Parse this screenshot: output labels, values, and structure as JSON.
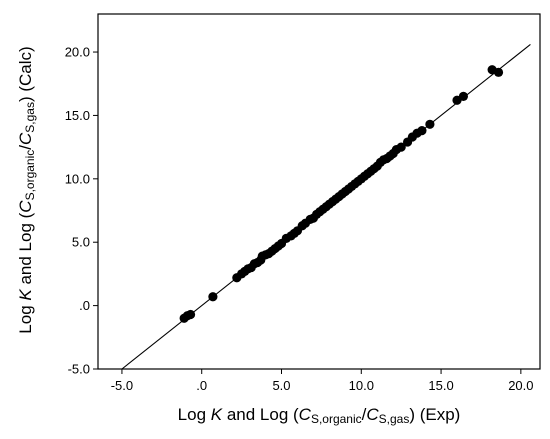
{
  "chart_data": {
    "type": "scatter",
    "title": "",
    "xlabel_parts": [
      "Log ",
      "K",
      " and Log (",
      "C",
      "S,organic",
      "/",
      "C",
      "S,gas",
      ")  (Exp)"
    ],
    "ylabel_parts": [
      "Log ",
      "K",
      " and Log (",
      "C",
      "S,organic",
      "/",
      "C",
      "S,gas",
      ")  (Calc)"
    ],
    "xlim": [
      -6.5,
      21.2
    ],
    "ylim": [
      -5.0,
      23.0
    ],
    "x_ticks": [
      -5,
      0,
      5,
      10,
      15,
      20
    ],
    "x_tick_labels": [
      "-5.0",
      ".0",
      "5.0",
      "10.0",
      "15.0",
      "20.0"
    ],
    "y_ticks": [
      -5,
      0,
      5,
      10,
      15,
      20
    ],
    "y_tick_labels": [
      "-5.0",
      ".0",
      "5.0",
      "10.0",
      "15.0",
      "20.0"
    ],
    "grid": false,
    "reference_line": {
      "slope": 1.0,
      "intercept": 0.0
    },
    "marker_color": "#000000",
    "series": [
      {
        "points": [
          [
            -1.1,
            -1.0
          ],
          [
            -0.9,
            -0.8
          ],
          [
            -0.7,
            -0.7
          ],
          [
            0.7,
            0.7
          ],
          [
            2.2,
            2.2
          ],
          [
            2.5,
            2.5
          ],
          [
            2.7,
            2.7
          ],
          [
            2.9,
            2.9
          ],
          [
            3.1,
            3.0
          ],
          [
            3.3,
            3.3
          ],
          [
            3.5,
            3.4
          ],
          [
            3.7,
            3.6
          ],
          [
            3.8,
            3.9
          ],
          [
            4.0,
            4.0
          ],
          [
            4.2,
            4.1
          ],
          [
            4.4,
            4.3
          ],
          [
            4.6,
            4.5
          ],
          [
            4.8,
            4.7
          ],
          [
            5.0,
            4.9
          ],
          [
            5.3,
            5.3
          ],
          [
            5.6,
            5.5
          ],
          [
            5.8,
            5.7
          ],
          [
            6.0,
            5.9
          ],
          [
            6.3,
            6.3
          ],
          [
            6.5,
            6.5
          ],
          [
            6.8,
            6.8
          ],
          [
            7.0,
            6.9
          ],
          [
            7.2,
            7.2
          ],
          [
            7.4,
            7.4
          ],
          [
            7.6,
            7.6
          ],
          [
            7.8,
            7.8
          ],
          [
            8.0,
            8.0
          ],
          [
            8.2,
            8.2
          ],
          [
            8.4,
            8.4
          ],
          [
            8.6,
            8.6
          ],
          [
            8.8,
            8.8
          ],
          [
            9.0,
            9.0
          ],
          [
            9.2,
            9.2
          ],
          [
            9.4,
            9.4
          ],
          [
            9.6,
            9.6
          ],
          [
            9.8,
            9.8
          ],
          [
            10.0,
            10.0
          ],
          [
            10.2,
            10.2
          ],
          [
            10.4,
            10.4
          ],
          [
            10.6,
            10.6
          ],
          [
            10.8,
            10.8
          ],
          [
            11.0,
            11.0
          ],
          [
            11.2,
            11.3
          ],
          [
            11.4,
            11.5
          ],
          [
            11.6,
            11.6
          ],
          [
            11.8,
            11.8
          ],
          [
            12.0,
            12.0
          ],
          [
            12.2,
            12.3
          ],
          [
            12.5,
            12.5
          ],
          [
            12.9,
            12.9
          ],
          [
            13.2,
            13.3
          ],
          [
            13.5,
            13.6
          ],
          [
            13.8,
            13.8
          ],
          [
            14.3,
            14.3
          ],
          [
            16.0,
            16.2
          ],
          [
            16.4,
            16.5
          ],
          [
            18.2,
            18.6
          ],
          [
            18.6,
            18.4
          ]
        ]
      }
    ]
  }
}
